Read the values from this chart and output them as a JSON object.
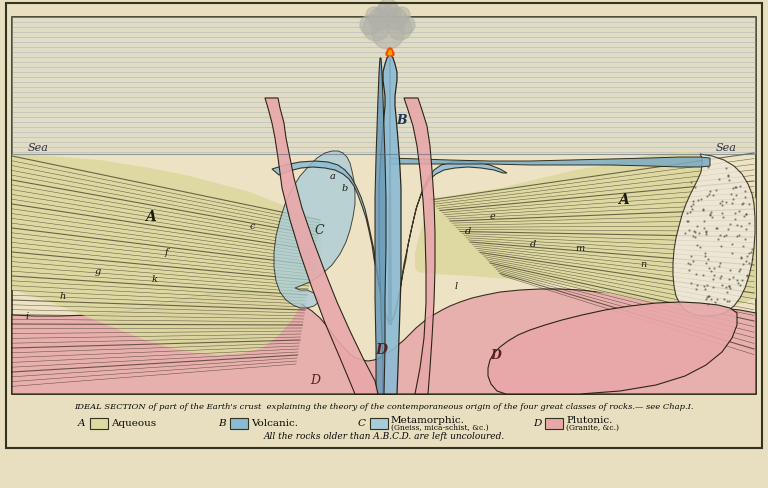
{
  "bg_color": "#e8dfc0",
  "paper_color": "#ede3c4",
  "border_color": "#333322",
  "aqueous_color": "#ddd9a0",
  "volcanic_color": "#8bbbd4",
  "metamorphic_color": "#a8ccd8",
  "plutonic_color": "#e8a8aa",
  "sea_gray": "#a8aaa0",
  "smoke_color": "#b0b0a8",
  "lava_color": "#cc3300",
  "line_color": "#1a1508",
  "title_text": "IDEAL SECTION of part of the Earth's crust  explaining the theory of the contemporaneous origin of the four great classes of rocks.— see Chap.I.",
  "legend_A": "Aqueous",
  "legend_B": "Volcanic.",
  "legend_C_line1": "Metamorphic.",
  "legend_C_line2": "(Gneiss, mica-schist, &c.)",
  "legend_D_line1": "Plutonic.",
  "legend_D_line2": "(Granite, &c.)",
  "footer_text": "All the rocks older than A.B.C.D. are left uncoloured.",
  "sea_label": "Sea"
}
